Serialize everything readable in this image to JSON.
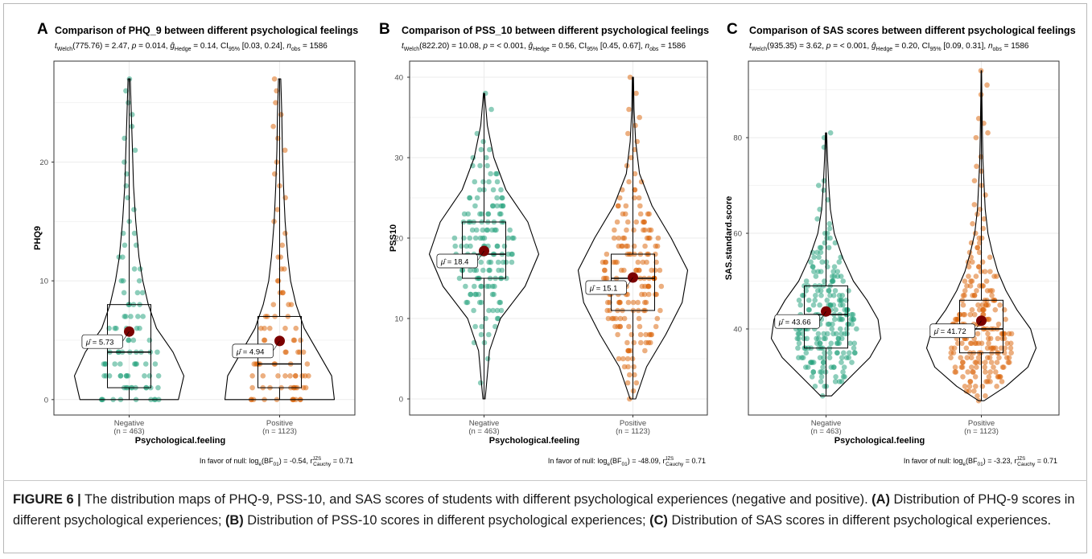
{
  "colors": {
    "negative": "#1b9e77",
    "positive": "#d95f02",
    "mean": "#7b0000",
    "grid": "#ebebeb",
    "panel_border": "#333333"
  },
  "xlabel": "Psychological.feeling",
  "groups": [
    {
      "label": "Negative",
      "n": "(n = 463)"
    },
    {
      "label": "Positive",
      "n": "(n = 1123)"
    }
  ],
  "chart_data": [
    {
      "type": "violin",
      "letter": "A",
      "title": "Comparison of PHQ_9 between different psychological feelings",
      "stats": {
        "t": "(775.76) = 2.47, ",
        "p": " = 0.014, ",
        "g": " = 0.14, CI",
        "ci": " [0.03, 0.24], ",
        "n": " = 1586"
      },
      "ylabel": "PHQ9",
      "ylim": [
        -1.3,
        28.5
      ],
      "yticks": [
        0,
        10,
        20
      ],
      "grid": true,
      "series": [
        {
          "name": "Negative",
          "mean": 5.73,
          "mean_label": "= 5.73",
          "median": 4,
          "q1": 1,
          "q3": 8,
          "min": 0,
          "max": 27,
          "dens": [
            [
              0,
              0.9
            ],
            [
              2,
              1.0
            ],
            [
              4,
              0.8
            ],
            [
              6,
              0.5
            ],
            [
              8,
              0.35
            ],
            [
              10,
              0.25
            ],
            [
              12,
              0.18
            ],
            [
              15,
              0.12
            ],
            [
              18,
              0.08
            ],
            [
              21,
              0.06
            ],
            [
              24,
              0.04
            ],
            [
              27,
              0.02
            ]
          ],
          "pts": [
            0,
            1,
            2,
            3,
            4,
            5,
            6,
            7,
            8,
            9,
            10,
            11,
            12,
            13,
            14,
            15,
            16,
            17,
            18,
            19,
            20,
            21,
            22,
            23,
            24,
            25,
            26,
            27
          ]
        },
        {
          "name": "Positive",
          "mean": 4.94,
          "mean_label": "= 4.94",
          "median": 3,
          "q1": 1,
          "q3": 7,
          "min": 0,
          "max": 27,
          "dens": [
            [
              0,
              1.0
            ],
            [
              2,
              0.95
            ],
            [
              4,
              0.7
            ],
            [
              6,
              0.45
            ],
            [
              8,
              0.3
            ],
            [
              10,
              0.2
            ],
            [
              12,
              0.15
            ],
            [
              15,
              0.1
            ],
            [
              18,
              0.07
            ],
            [
              21,
              0.05
            ],
            [
              24,
              0.04
            ],
            [
              27,
              0.02
            ]
          ],
          "pts": [
            0,
            1,
            2,
            3,
            4,
            5,
            6,
            7,
            8,
            9,
            10,
            11,
            12,
            13,
            14,
            15,
            16,
            17,
            18,
            19,
            20,
            21,
            22,
            23,
            24,
            25,
            26,
            27
          ]
        }
      ],
      "footer": {
        "pre": "In favor of null: log",
        "mid": "(BF",
        "post": ") = -0.54, r",
        "tail": " = 0.71"
      }
    },
    {
      "type": "violin",
      "letter": "B",
      "title": "Comparison of PSS_10 between different psychological feelings",
      "stats": {
        "t": "(822.20) = 10.08, ",
        "p": " = < 0.001, ",
        "g": " = 0.56, CI",
        "ci": " [0.45, 0.67], ",
        "n": " = 1586"
      },
      "ylabel": "PSS10",
      "ylim": [
        -2,
        42
      ],
      "yticks": [
        0,
        10,
        20,
        30,
        40
      ],
      "grid": true,
      "series": [
        {
          "name": "Negative",
          "mean": 18.4,
          "mean_label": "= 18.4",
          "median": 18,
          "q1": 15,
          "q3": 22,
          "min": 0,
          "max": 38,
          "dens": [
            [
              0,
              0.02
            ],
            [
              6,
              0.1
            ],
            [
              10,
              0.3
            ],
            [
              14,
              0.75
            ],
            [
              18,
              1.0
            ],
            [
              22,
              0.8
            ],
            [
              26,
              0.4
            ],
            [
              30,
              0.18
            ],
            [
              34,
              0.06
            ],
            [
              38,
              0.01
            ]
          ],
          "pts": [
            2,
            5,
            7,
            8,
            9,
            10,
            11,
            12,
            13,
            14,
            15,
            16,
            17,
            18,
            19,
            20,
            21,
            22,
            23,
            24,
            25,
            26,
            27,
            28,
            29,
            30,
            31,
            32,
            33,
            36,
            38
          ]
        },
        {
          "name": "Positive",
          "mean": 15.1,
          "mean_label": "= 15.1",
          "median": 15,
          "q1": 11,
          "q3": 18,
          "min": 0,
          "max": 40,
          "dens": [
            [
              0,
              0.05
            ],
            [
              4,
              0.25
            ],
            [
              8,
              0.6
            ],
            [
              12,
              0.9
            ],
            [
              16,
              1.0
            ],
            [
              20,
              0.7
            ],
            [
              24,
              0.35
            ],
            [
              28,
              0.12
            ],
            [
              32,
              0.05
            ],
            [
              36,
              0.02
            ],
            [
              40,
              0.01
            ]
          ],
          "pts": [
            0,
            1,
            2,
            3,
            4,
            5,
            6,
            7,
            8,
            9,
            10,
            11,
            12,
            13,
            14,
            15,
            16,
            17,
            18,
            19,
            20,
            21,
            22,
            23,
            24,
            25,
            26,
            27,
            28,
            29,
            30,
            31,
            32,
            33,
            34,
            35,
            36,
            38,
            40
          ]
        }
      ],
      "footer": {
        "pre": "In favor of null: log",
        "mid": "(BF",
        "post": ") = -48.09, r",
        "tail": " = 0.71"
      }
    },
    {
      "type": "violin",
      "letter": "C",
      "title": "Comparison of SAS scores between different psychological feelings",
      "stats": {
        "t": "(935.35) = 3.62, ",
        "p": " = < 0.001, ",
        "g": " = 0.20, CI",
        "ci": " [0.09, 0.31], ",
        "n": " = 1586"
      },
      "ylabel": "SAS.standard.score",
      "ylim": [
        22,
        96
      ],
      "yticks": [
        40,
        60,
        80
      ],
      "grid": true,
      "series": [
        {
          "name": "Negative",
          "mean": 43.66,
          "mean_label": "= 43.66",
          "median": 43,
          "q1": 36,
          "q3": 49,
          "min": 26,
          "max": 81,
          "dens": [
            [
              26,
              0.1
            ],
            [
              30,
              0.45
            ],
            [
              34,
              0.8
            ],
            [
              38,
              1.0
            ],
            [
              42,
              0.95
            ],
            [
              46,
              0.75
            ],
            [
              50,
              0.5
            ],
            [
              55,
              0.3
            ],
            [
              60,
              0.15
            ],
            [
              65,
              0.08
            ],
            [
              70,
              0.05
            ],
            [
              75,
              0.03
            ],
            [
              81,
              0.01
            ]
          ],
          "pts": [
            26,
            28,
            29,
            30,
            31,
            32,
            33,
            34,
            35,
            36,
            37,
            38,
            39,
            40,
            41,
            42,
            43,
            44,
            45,
            46,
            47,
            48,
            49,
            50,
            51,
            52,
            53,
            54,
            55,
            56,
            57,
            58,
            59,
            60,
            61,
            62,
            63,
            65,
            67,
            69,
            70,
            71,
            78,
            80,
            81
          ]
        },
        {
          "name": "Positive",
          "mean": 41.72,
          "mean_label": "= 41.72",
          "median": 40,
          "q1": 35,
          "q3": 46,
          "min": 25,
          "max": 94,
          "dens": [
            [
              25,
              0.05
            ],
            [
              28,
              0.45
            ],
            [
              32,
              0.85
            ],
            [
              36,
              1.0
            ],
            [
              40,
              0.9
            ],
            [
              44,
              0.65
            ],
            [
              48,
              0.45
            ],
            [
              52,
              0.3
            ],
            [
              56,
              0.2
            ],
            [
              60,
              0.12
            ],
            [
              65,
              0.07
            ],
            [
              70,
              0.05
            ],
            [
              75,
              0.03
            ],
            [
              80,
              0.02
            ],
            [
              88,
              0.01
            ],
            [
              94,
              0.005
            ]
          ],
          "pts": [
            25,
            26,
            27,
            28,
            29,
            30,
            31,
            32,
            33,
            34,
            35,
            36,
            37,
            38,
            39,
            40,
            41,
            42,
            43,
            44,
            45,
            46,
            47,
            48,
            49,
            50,
            51,
            52,
            53,
            54,
            55,
            56,
            57,
            58,
            59,
            60,
            61,
            62,
            63,
            64,
            65,
            66,
            68,
            70,
            71,
            73,
            74,
            76,
            80,
            81,
            83,
            84,
            89,
            91,
            94
          ]
        }
      ],
      "footer": {
        "pre": "In favor of null: log",
        "mid": "(BF",
        "post": ") = -3.23, r",
        "tail": " = 0.71"
      }
    }
  ],
  "caption": {
    "label": "FIGURE 6 |",
    "intro": " The distribution maps of PHQ-9, PSS-10, and SAS scores of students with different psychological experiences (negative and positive). ",
    "a_tag": "(A)",
    "a_text": " Distribution of PHQ-9 scores in different psychological experiences; ",
    "b_tag": "(B)",
    "b_text": " Distribution of PSS-10 scores in different psychological experiences; ",
    "c_tag": "(C)",
    "c_text": " Distribution of SAS scores in different psychological experiences."
  }
}
